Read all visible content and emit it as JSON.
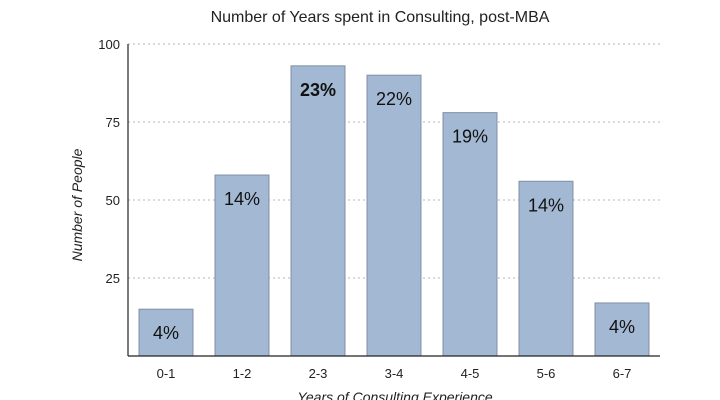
{
  "chart_data": {
    "type": "bar",
    "title": "Number of Years spent in Consulting, post-MBA",
    "xlabel": "Years of Consulting Experience",
    "ylabel": "Number of People",
    "categories": [
      "0-1",
      "1-2",
      "2-3",
      "3-4",
      "4-5",
      "5-6",
      "6-7"
    ],
    "values": [
      15,
      58,
      93,
      90,
      78,
      56,
      17
    ],
    "bar_labels": [
      "4%",
      "14%",
      "23%",
      "22%",
      "19%",
      "14%",
      "4%"
    ],
    "highlight_index": 2,
    "ylim": [
      0,
      100
    ],
    "yticks": [
      25,
      50,
      75,
      100
    ],
    "grid": true,
    "grid_style": "dotted",
    "legend": "none",
    "colors": {
      "bar_fill": "#a3b8d3",
      "bar_stroke": "#7f8fa6",
      "grid": "#b5b5b5",
      "axis": "#222222",
      "text": "#222222"
    }
  }
}
